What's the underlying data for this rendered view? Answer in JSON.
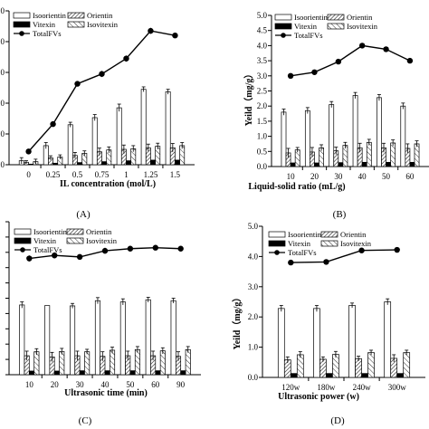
{
  "legend": {
    "labels": [
      "Isoorientin",
      "Orientin",
      "Vitexin",
      "Isovitexin",
      "TotalFVs"
    ]
  },
  "chart_data": [
    {
      "panel_label": "(A)",
      "type": "bar+line",
      "xlabel": "IL concentration (mol/L)",
      "ylabel": "",
      "categories": [
        "0",
        "0.25",
        "0.5",
        "0.75",
        "1",
        "1.25",
        "1.5"
      ],
      "ylim": [
        0,
        5.0
      ],
      "yticks": [
        "0",
        "0",
        "0",
        "0",
        "0",
        "0"
      ],
      "legend_position": "top-left",
      "series": [
        {
          "name": "Isoorientin",
          "kind": "bar",
          "values": [
            0.13,
            0.62,
            1.3,
            1.53,
            1.85,
            2.45,
            2.37
          ],
          "errors": [
            0.1,
            0.1,
            0.08,
            0.1,
            0.12,
            0.08,
            0.08
          ]
        },
        {
          "name": "Orientin",
          "kind": "bar",
          "values": [
            0.08,
            0.22,
            0.3,
            0.42,
            0.5,
            0.55,
            0.55
          ],
          "errors": [
            0.05,
            0.07,
            0.1,
            0.12,
            0.14,
            0.12,
            0.14
          ]
        },
        {
          "name": "Vitexin",
          "kind": "bar",
          "values": [
            0.02,
            0.05,
            0.07,
            0.1,
            0.13,
            0.15,
            0.15
          ],
          "errors": [
            0,
            0,
            0,
            0,
            0,
            0,
            0
          ]
        },
        {
          "name": "Isovitexin",
          "kind": "bar",
          "values": [
            0.1,
            0.25,
            0.37,
            0.48,
            0.52,
            0.6,
            0.62
          ],
          "errors": [
            0.08,
            0.07,
            0.08,
            0.1,
            0.1,
            0.1,
            0.1
          ]
        },
        {
          "name": "TotalFVs",
          "kind": "line",
          "values": [
            0.43,
            1.32,
            2.63,
            2.95,
            3.45,
            4.35,
            4.2
          ],
          "errors": [
            0.07,
            0.08,
            0.07,
            0.1,
            0.1,
            0.1,
            0.05
          ]
        }
      ]
    },
    {
      "panel_label": "(B)",
      "type": "bar+line",
      "xlabel": "Liquid-solid ratio (mL/g)",
      "ylabel": "Yeild（mg/g）",
      "categories": [
        "10",
        "20",
        "30",
        "40",
        "50",
        "60"
      ],
      "ylim": [
        0,
        5.0
      ],
      "yticks": [
        "0.0",
        "0.5",
        "1.0",
        "1.5",
        "2.0",
        "2.5",
        "3.0",
        "3.5",
        "4.0",
        "4.5",
        "5.0"
      ],
      "legend_position": "top-left",
      "series": [
        {
          "name": "Isoorientin",
          "kind": "bar",
          "values": [
            1.8,
            1.85,
            2.05,
            2.35,
            2.28,
            2.0
          ],
          "errors": [
            0.1,
            0.1,
            0.1,
            0.1,
            0.1,
            0.1
          ]
        },
        {
          "name": "Orientin",
          "kind": "bar",
          "values": [
            0.45,
            0.48,
            0.52,
            0.62,
            0.62,
            0.6
          ],
          "errors": [
            0.15,
            0.15,
            0.12,
            0.15,
            0.15,
            0.15
          ]
        },
        {
          "name": "Vitexin",
          "kind": "bar",
          "values": [
            0.12,
            0.12,
            0.13,
            0.14,
            0.14,
            0.14
          ],
          "errors": [
            0,
            0,
            0,
            0,
            0,
            0
          ]
        },
        {
          "name": "Isovitexin",
          "kind": "bar",
          "values": [
            0.55,
            0.62,
            0.7,
            0.8,
            0.78,
            0.75
          ],
          "errors": [
            0.08,
            0.1,
            0.1,
            0.1,
            0.1,
            0.1
          ]
        },
        {
          "name": "TotalFVs",
          "kind": "line",
          "values": [
            3.0,
            3.12,
            3.47,
            4.0,
            3.88,
            3.5
          ],
          "errors": [
            0.05,
            0.05,
            0.05,
            0.05,
            0.05,
            0.05
          ]
        }
      ]
    },
    {
      "panel_label": "(C)",
      "type": "bar+line",
      "xlabel": "Ultrasonic time (min)",
      "ylabel": "",
      "categories": [
        "10",
        "20",
        "30",
        "40",
        "50",
        "60",
        "90"
      ],
      "ylim": [
        0,
        5.0
      ],
      "yticks": [
        "",
        "",
        "",
        "",
        "",
        "",
        "",
        "",
        "",
        "",
        ""
      ],
      "legend_position": "top-left",
      "series": [
        {
          "name": "Isoorientin",
          "kind": "bar",
          "values": [
            2.28,
            2.26,
            2.25,
            2.42,
            2.38,
            2.45,
            2.42
          ],
          "errors": [
            0.1,
            0,
            0.08,
            0.1,
            0.1,
            0.08,
            0.08
          ]
        },
        {
          "name": "Orientin",
          "kind": "bar",
          "values": [
            0.62,
            0.58,
            0.62,
            0.6,
            0.62,
            0.62,
            0.6
          ],
          "errors": [
            0.15,
            0.15,
            0.15,
            0.15,
            0.15,
            0.15,
            0.15
          ]
        },
        {
          "name": "Vitexin",
          "kind": "bar",
          "values": [
            0.12,
            0.12,
            0.13,
            0.13,
            0.13,
            0.13,
            0.13
          ],
          "errors": [
            0,
            0,
            0,
            0,
            0,
            0,
            0
          ]
        },
        {
          "name": "Isovitexin",
          "kind": "bar",
          "values": [
            0.75,
            0.76,
            0.75,
            0.8,
            0.82,
            0.78,
            0.82
          ],
          "errors": [
            0.1,
            0.1,
            0.08,
            0.1,
            0.1,
            0.1,
            0.1
          ]
        },
        {
          "name": "TotalFVs",
          "kind": "line",
          "values": [
            3.8,
            3.9,
            3.85,
            4.05,
            4.12,
            4.15,
            4.12
          ],
          "errors": [
            0.1,
            0.1,
            0.05,
            0.1,
            0.08,
            0.05,
            0.05
          ]
        }
      ]
    },
    {
      "panel_label": "(D)",
      "type": "bar+line",
      "xlabel": "Ultrasonic power (w)",
      "ylabel": "Yeild（mg/g）",
      "categories": [
        "120w",
        "180w",
        "240w",
        "300w"
      ],
      "ylim": [
        0,
        5.0
      ],
      "yticks": [
        "0.0",
        "1.0",
        "2.0",
        "3.0",
        "4.0",
        "5.0"
      ],
      "legend_position": "top-left",
      "series": [
        {
          "name": "Isoorientin",
          "kind": "bar",
          "values": [
            2.28,
            2.28,
            2.38,
            2.5
          ],
          "errors": [
            0.1,
            0.1,
            0.08,
            0.1
          ]
        },
        {
          "name": "Orientin",
          "kind": "bar",
          "values": [
            0.58,
            0.6,
            0.62,
            0.63
          ],
          "errors": [
            0.1,
            0.08,
            0.08,
            0.12
          ]
        },
        {
          "name": "Vitexin",
          "kind": "bar",
          "values": [
            0.13,
            0.13,
            0.13,
            0.13
          ],
          "errors": [
            0,
            0,
            0,
            0
          ]
        },
        {
          "name": "Isovitexin",
          "kind": "bar",
          "values": [
            0.75,
            0.76,
            0.82,
            0.82
          ],
          "errors": [
            0.1,
            0.1,
            0.08,
            0.08
          ]
        },
        {
          "name": "TotalFVs",
          "kind": "line",
          "values": [
            3.8,
            3.82,
            4.2,
            4.22
          ],
          "errors": [
            0.03,
            0.03,
            0.03,
            0.03
          ]
        }
      ]
    }
  ]
}
